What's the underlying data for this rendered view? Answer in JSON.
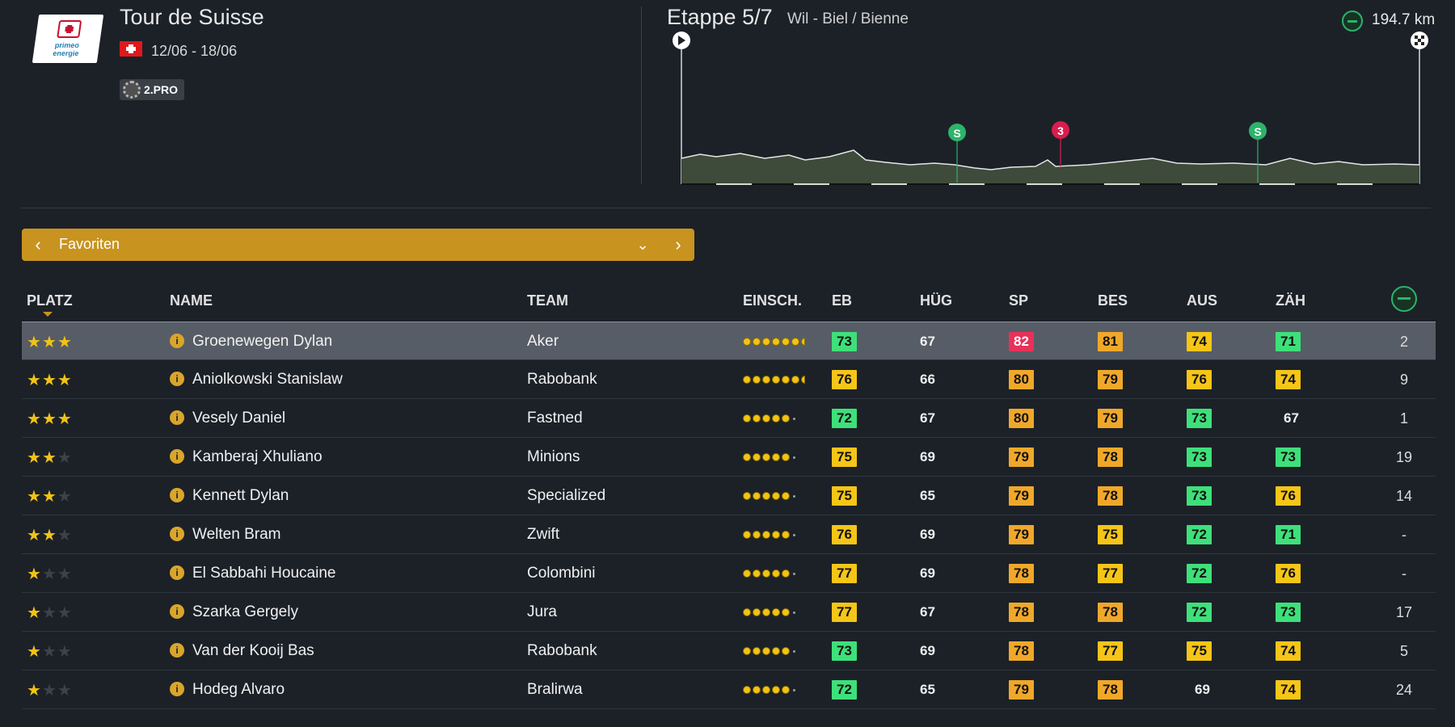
{
  "race": {
    "name": "Tour de Suisse",
    "dates": "12/06 - 18/06",
    "class_badge": "2.PRO",
    "logo_sponsor_line1": "primeo",
    "logo_sponsor_line2": "energie"
  },
  "stage": {
    "label": "Etappe 5/7",
    "route": "Wil - Biel / Bienne",
    "distance": "194.7 km",
    "markers": [
      {
        "type": "sprint",
        "label": "S",
        "color": "#2db36a",
        "position_km": 60
      },
      {
        "type": "climb",
        "label": "3",
        "color": "#d81e4e",
        "position_km": 84
      },
      {
        "type": "sprint",
        "label": "S",
        "color": "#2db36a",
        "position_km": 152
      }
    ]
  },
  "selector": {
    "label": "Favoriten"
  },
  "columns": {
    "platz": "PLATZ",
    "name": "NAME",
    "team": "TEAM",
    "einsch": "EINSCH.",
    "eb": "EB",
    "hug": "HÜG",
    "sp": "SP",
    "bes": "BES",
    "aus": "AUS",
    "zah": "ZÄH"
  },
  "colors": {
    "accent": "#c8941f",
    "green": "#3ee07a",
    "yellow": "#f5c518",
    "orange": "#f0a82a",
    "red": "#e8315a",
    "star": "#f2c315"
  },
  "riders": [
    {
      "stars": 3,
      "name": "Groenewegen Dylan",
      "team": "Aker",
      "rating": 6.5,
      "eb": {
        "v": "73",
        "c": "green"
      },
      "hug": {
        "v": "67",
        "c": "none"
      },
      "sp": {
        "v": "82",
        "c": "red"
      },
      "bes": {
        "v": "81",
        "c": "orange"
      },
      "aus": {
        "v": "74",
        "c": "yellow"
      },
      "zah": {
        "v": "71",
        "c": "green"
      },
      "rank": "2",
      "selected": true
    },
    {
      "stars": 3,
      "name": "Aniolkowski Stanislaw",
      "team": "Rabobank",
      "rating": 6.5,
      "eb": {
        "v": "76",
        "c": "yellow"
      },
      "hug": {
        "v": "66",
        "c": "none"
      },
      "sp": {
        "v": "80",
        "c": "orange"
      },
      "bes": {
        "v": "79",
        "c": "orange"
      },
      "aus": {
        "v": "76",
        "c": "yellow"
      },
      "zah": {
        "v": "74",
        "c": "yellow"
      },
      "rank": "9",
      "selected": false
    },
    {
      "stars": 3,
      "name": "Vesely Daniel",
      "team": "Fastned",
      "rating": 5,
      "eb": {
        "v": "72",
        "c": "green"
      },
      "hug": {
        "v": "67",
        "c": "none"
      },
      "sp": {
        "v": "80",
        "c": "orange"
      },
      "bes": {
        "v": "79",
        "c": "orange"
      },
      "aus": {
        "v": "73",
        "c": "green"
      },
      "zah": {
        "v": "67",
        "c": "none"
      },
      "rank": "1",
      "selected": false
    },
    {
      "stars": 2,
      "name": "Kamberaj Xhuliano",
      "team": "Minions",
      "rating": 5,
      "eb": {
        "v": "75",
        "c": "yellow"
      },
      "hug": {
        "v": "69",
        "c": "none"
      },
      "sp": {
        "v": "79",
        "c": "orange"
      },
      "bes": {
        "v": "78",
        "c": "orange"
      },
      "aus": {
        "v": "73",
        "c": "green"
      },
      "zah": {
        "v": "73",
        "c": "green"
      },
      "rank": "19",
      "selected": false
    },
    {
      "stars": 2,
      "name": "Kennett Dylan",
      "team": "Specialized",
      "rating": 5,
      "eb": {
        "v": "75",
        "c": "yellow"
      },
      "hug": {
        "v": "65",
        "c": "none"
      },
      "sp": {
        "v": "79",
        "c": "orange"
      },
      "bes": {
        "v": "78",
        "c": "orange"
      },
      "aus": {
        "v": "73",
        "c": "green"
      },
      "zah": {
        "v": "76",
        "c": "yellow"
      },
      "rank": "14",
      "selected": false
    },
    {
      "stars": 2,
      "name": "Welten Bram",
      "team": "Zwift",
      "rating": 5,
      "eb": {
        "v": "76",
        "c": "yellow"
      },
      "hug": {
        "v": "69",
        "c": "none"
      },
      "sp": {
        "v": "79",
        "c": "orange"
      },
      "bes": {
        "v": "75",
        "c": "yellow"
      },
      "aus": {
        "v": "72",
        "c": "green"
      },
      "zah": {
        "v": "71",
        "c": "green"
      },
      "rank": "-",
      "selected": false
    },
    {
      "stars": 1,
      "name": "El Sabbahi Houcaine",
      "team": "Colombini",
      "rating": 5,
      "eb": {
        "v": "77",
        "c": "yellow"
      },
      "hug": {
        "v": "69",
        "c": "none"
      },
      "sp": {
        "v": "78",
        "c": "orange"
      },
      "bes": {
        "v": "77",
        "c": "yellow"
      },
      "aus": {
        "v": "72",
        "c": "green"
      },
      "zah": {
        "v": "76",
        "c": "yellow"
      },
      "rank": "-",
      "selected": false
    },
    {
      "stars": 1,
      "name": "Szarka Gergely",
      "team": "Jura",
      "rating": 5,
      "eb": {
        "v": "77",
        "c": "yellow"
      },
      "hug": {
        "v": "67",
        "c": "none"
      },
      "sp": {
        "v": "78",
        "c": "orange"
      },
      "bes": {
        "v": "78",
        "c": "orange"
      },
      "aus": {
        "v": "72",
        "c": "green"
      },
      "zah": {
        "v": "73",
        "c": "green"
      },
      "rank": "17",
      "selected": false
    },
    {
      "stars": 1,
      "name": "Van der Kooij Bas",
      "team": "Rabobank",
      "rating": 5,
      "eb": {
        "v": "73",
        "c": "green"
      },
      "hug": {
        "v": "69",
        "c": "none"
      },
      "sp": {
        "v": "78",
        "c": "orange"
      },
      "bes": {
        "v": "77",
        "c": "yellow"
      },
      "aus": {
        "v": "75",
        "c": "yellow"
      },
      "zah": {
        "v": "74",
        "c": "yellow"
      },
      "rank": "5",
      "selected": false
    },
    {
      "stars": 1,
      "name": "Hodeg Alvaro",
      "team": "Bralirwa",
      "rating": 5,
      "eb": {
        "v": "72",
        "c": "green"
      },
      "hug": {
        "v": "65",
        "c": "none"
      },
      "sp": {
        "v": "79",
        "c": "orange"
      },
      "bes": {
        "v": "78",
        "c": "orange"
      },
      "aus": {
        "v": "69",
        "c": "none"
      },
      "zah": {
        "v": "74",
        "c": "yellow"
      },
      "rank": "24",
      "selected": false
    }
  ]
}
